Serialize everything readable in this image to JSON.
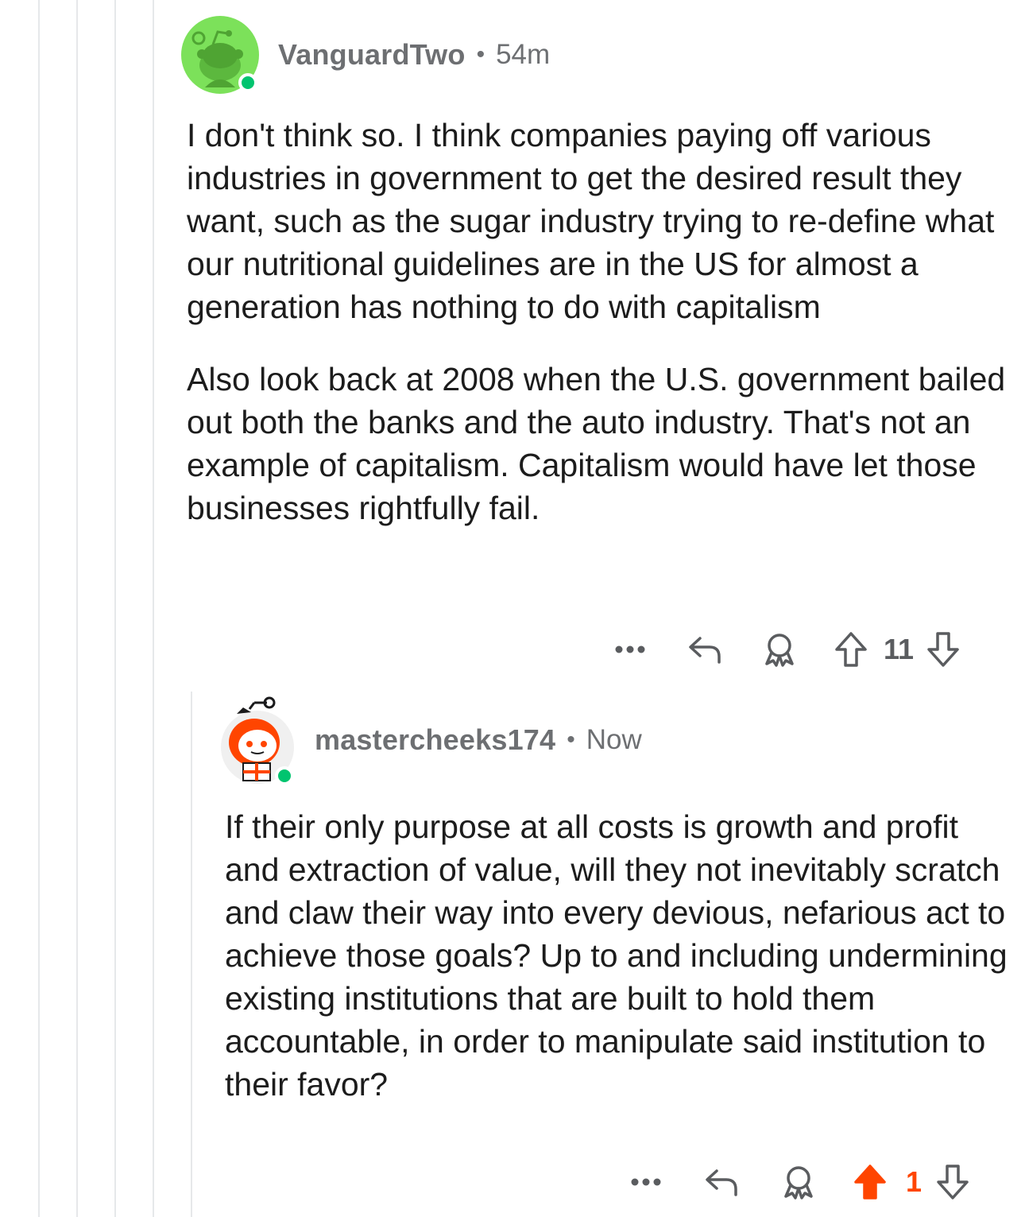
{
  "comments": [
    {
      "username": "VanguardTwo",
      "separator": "•",
      "time": "54m",
      "avatar_icon": "snoo-green-avatar-icon",
      "avatar_color": "#7ce15a",
      "paragraphs": [
        "I don't think so. I think companies paying off various industries in government to get the desired result they want, such as the sugar industry trying to re-define what our nutritional guidelines are in the US for almost a generation has nothing to do with capitalism",
        "Also look back at 2008 when the U.S. government bailed out both the banks and the auto industry. That's not an example of capitalism. Capitalism would have let those businesses rightfully fail."
      ],
      "score": "11",
      "upvoted": false
    },
    {
      "username": "mastercheeks174",
      "separator": "•",
      "time": "Now",
      "avatar_icon": "snoo-orange-hood-avatar-icon",
      "avatar_color": "#ff4500",
      "paragraphs": [
        "If their only purpose at all costs is growth and profit and extraction of value, will they not inevitably scratch and claw their way into every devious, nefarious act to achieve those goals? Up to and including undermining existing institutions that are built to hold them accountable, in order to manipulate said institution to their favor?"
      ],
      "score": "1",
      "upvoted": true
    }
  ],
  "colors": {
    "online": "#01c46f",
    "upvote": "#ff4500",
    "meta": "#6d6f72",
    "thread_line": "#e6e8ea"
  }
}
